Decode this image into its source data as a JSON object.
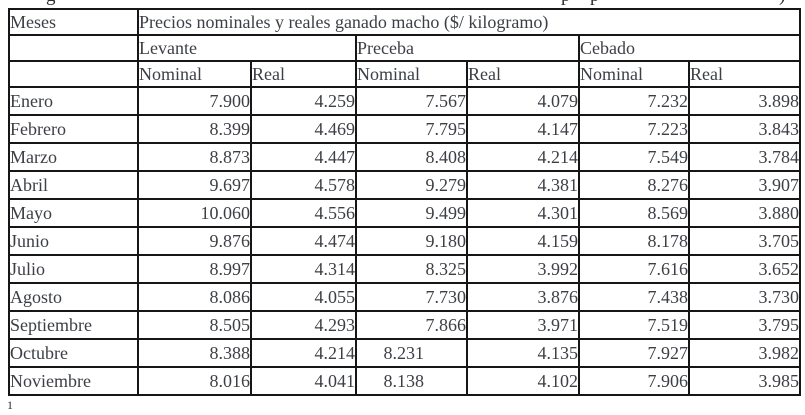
{
  "colors": {
    "background": "#ffffff",
    "text": "#3c4046",
    "border": "#161616"
  },
  "cropped_caption_fragments": {
    "glyphs": [
      "g",
      "p",
      "p",
      ")"
    ]
  },
  "footnote_marker": "1",
  "table": {
    "corner_header": "Meses",
    "main_header": "Precios nominales y reales ganado macho ($/ kilogramo)",
    "group_headers": [
      "Levante",
      "Preceba",
      "Cebado"
    ],
    "sub_headers": [
      "Nominal",
      "Real",
      "Nominal",
      "Real",
      "Nominal",
      "Real"
    ],
    "right_shifted_cells": [
      [
        9,
        2
      ],
      [
        10,
        2
      ]
    ],
    "rows": [
      {
        "month": "Enero",
        "values": [
          "7.900",
          "4.259",
          "7.567",
          "4.079",
          "7.232",
          "3.898"
        ]
      },
      {
        "month": "Febrero",
        "values": [
          "8.399",
          "4.469",
          "7.795",
          "4.147",
          "7.223",
          "3.843"
        ]
      },
      {
        "month": "Marzo",
        "values": [
          "8.873",
          "4.447",
          "8.408",
          "4.214",
          "7.549",
          "3.784"
        ]
      },
      {
        "month": "Abril",
        "values": [
          "9.697",
          "4.578",
          "9.279",
          "4.381",
          "8.276",
          "3.907"
        ]
      },
      {
        "month": "Mayo",
        "values": [
          "10.060",
          "4.556",
          "9.499",
          "4.301",
          "8.569",
          "3.880"
        ]
      },
      {
        "month": "Junio",
        "values": [
          "9.876",
          "4.474",
          "9.180",
          "4.159",
          "8.178",
          "3.705"
        ]
      },
      {
        "month": "Julio",
        "values": [
          "8.997",
          "4.314",
          "8.325",
          "3.992",
          "7.616",
          "3.652"
        ]
      },
      {
        "month": "Agosto",
        "values": [
          "8.086",
          "4.055",
          "7.730",
          "3.876",
          "7.438",
          "3.730"
        ]
      },
      {
        "month": "Septiembre",
        "values": [
          "8.505",
          "4.293",
          "7.866",
          "3.971",
          "7.519",
          "3.795"
        ]
      },
      {
        "month": "Octubre",
        "values": [
          "8.388",
          "4.214",
          "8.231",
          "4.135",
          "7.927",
          "3.982"
        ]
      },
      {
        "month": "Noviembre",
        "values": [
          "8.016",
          "4.041",
          "8.138",
          "4.102",
          "7.906",
          "3.985"
        ]
      }
    ]
  }
}
